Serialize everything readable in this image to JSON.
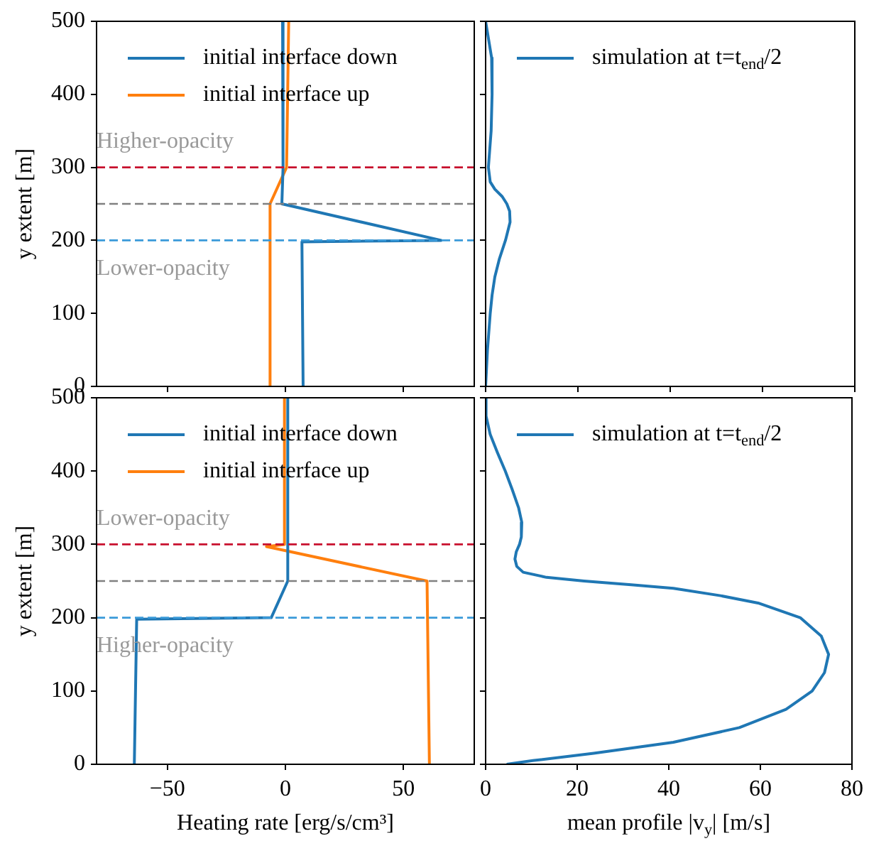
{
  "chart_data": [
    {
      "type": "line",
      "ylabel": "y extent [m]",
      "xlim": [
        -80,
        80
      ],
      "xticks": [
        -50,
        0,
        50
      ],
      "ylim": [
        0,
        500
      ],
      "yticks": [
        0,
        100,
        200,
        300,
        400,
        500
      ],
      "tick_labels": "y",
      "legend": "top left",
      "grid": false,
      "marker": "none",
      "series": [
        {
          "name": "initial interface down",
          "color": "#1f77b4",
          "x": [
            -1.2,
            -1,
            -1.5,
            66,
            7,
            7.5
          ],
          "values": [
            500,
            300,
            250,
            200,
            198,
            0
          ]
        },
        {
          "name": "initial interface up",
          "color": "#ff7f0e",
          "x": [
            1.4,
            0.5,
            -6.5,
            -6.5
          ],
          "values": [
            500,
            300,
            250,
            0
          ]
        }
      ],
      "ref_lines": [
        {
          "axis": "y",
          "value": 300,
          "color": "#c8102e",
          "line_style": "dashed"
        },
        {
          "axis": "y",
          "value": 250,
          "color": "#808080",
          "line_style": "dashed"
        },
        {
          "axis": "y",
          "value": 200,
          "color": "#3a9ad9",
          "line_style": "dashed"
        }
      ],
      "annotations": [
        "Higher-opacity",
        "Lower-opacity"
      ]
    },
    {
      "type": "line",
      "xlim": [
        0,
        80
      ],
      "xticks": [
        0,
        20,
        40,
        60,
        80
      ],
      "ylim": [
        0,
        500
      ],
      "yticks": [
        0,
        100,
        200,
        300,
        400,
        500
      ],
      "tick_labels": false,
      "legend": "top left",
      "grid": false,
      "marker": "none",
      "series": [
        {
          "name": "simulation at t=t$_{end}$/2",
          "color": "#1f77b4",
          "x": [
            0,
            1.3,
            1.4,
            1.2,
            0.6,
            1,
            2,
            3.6,
            4.6,
            5.2,
            5.3,
            4.3,
            3,
            2,
            1.4,
            1,
            0.4,
            0
          ],
          "values": [
            500,
            450,
            400,
            350,
            300,
            280,
            270,
            260,
            250,
            240,
            225,
            200,
            175,
            150,
            125,
            100,
            50,
            0
          ]
        }
      ]
    },
    {
      "type": "line",
      "xlabel": "Heating rate [erg/s/cm³]",
      "ylabel": "y extent [m]",
      "xlim": [
        -80,
        80
      ],
      "xticks": [
        -50,
        0,
        50
      ],
      "ylim": [
        0,
        500
      ],
      "yticks": [
        0,
        100,
        200,
        300,
        400,
        500
      ],
      "legend": "top left",
      "grid": false,
      "marker": "none",
      "series": [
        {
          "name": "initial interface down",
          "color": "#1f77b4",
          "x": [
            1,
            1,
            -6,
            -63,
            -64
          ],
          "values": [
            500,
            250,
            200,
            198,
            0
          ]
        },
        {
          "name": "initial interface up",
          "color": "#ff7f0e",
          "x": [
            -0.4,
            -0.4,
            -8,
            60,
            61
          ],
          "values": [
            500,
            300,
            297,
            250,
            0
          ]
        }
      ],
      "ref_lines": [
        {
          "axis": "y",
          "value": 300,
          "color": "#c8102e",
          "line_style": "dashed"
        },
        {
          "axis": "y",
          "value": 250,
          "color": "#808080",
          "line_style": "dashed"
        },
        {
          "axis": "y",
          "value": 200,
          "color": "#3a9ad9",
          "line_style": "dashed"
        }
      ],
      "annotations": [
        "Lower-opacity",
        "Higher-opacity"
      ]
    },
    {
      "type": "line",
      "xlabel": "mean profile |v$_{y}$| [m/s]",
      "xlim": [
        0,
        80
      ],
      "xticks": [
        0,
        20,
        40,
        60,
        80
      ],
      "ylim": [
        0,
        500
      ],
      "yticks": [
        0,
        100,
        200,
        300,
        400,
        500
      ],
      "tick_labels": "x",
      "legend": "top left",
      "grid": false,
      "marker": "none",
      "series": [
        {
          "name": "simulation at t=t$_{end}$/2",
          "color": "#1f77b4",
          "x": [
            0,
            0.1,
            1,
            2.6,
            4.3,
            5.8,
            7.2,
            7.9,
            7.8,
            7.4,
            6.7,
            6.4,
            6.8,
            8.2,
            13.3,
            21.5,
            31.8,
            41,
            51.3,
            59.5,
            68.7,
            73.3,
            74.9,
            74,
            71.3,
            65.6,
            55.4,
            41,
            23.6,
            10.3,
            4.6
          ],
          "values": [
            500,
            475,
            450,
            425,
            400,
            375,
            350,
            330,
            310,
            300,
            290,
            280,
            270,
            262,
            255,
            250,
            245,
            240,
            230,
            220,
            200,
            175,
            150,
            125,
            100,
            75,
            50,
            30,
            15,
            5,
            0
          ]
        }
      ]
    }
  ]
}
